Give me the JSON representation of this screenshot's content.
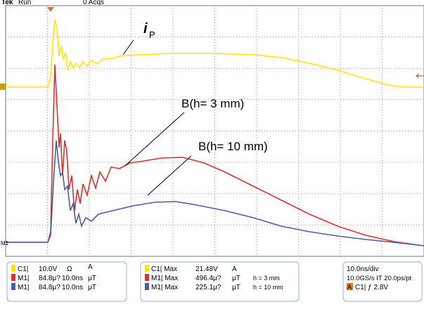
{
  "header": {
    "brand": "Tek",
    "state": "Run",
    "acqs": "0 Acqs"
  },
  "annotations": {
    "ip_main": "i",
    "ip_sub": "P",
    "b3": "B(h= 3 mm)",
    "b10": "B(h= 10 mm)",
    "ref": "M1"
  },
  "panels": {
    "channels": {
      "rows": [
        [
          "C1|",
          "10.0V",
          "Ω",
          "A"
        ],
        [
          "M1|",
          "84.8μ?",
          "10.0ns",
          "μT"
        ],
        [
          "M1|",
          "84.8μ?",
          "10.0ns",
          "μT"
        ]
      ]
    },
    "measurements": {
      "rows": [
        [
          "C1| Max",
          "21.48V",
          "A",
          ""
        ],
        [
          "M1| Max",
          "496.4μ?",
          "μT",
          "h = 3 mm"
        ],
        [
          "M1| Max",
          "225.1μ?",
          "μT",
          "h = 10 mm"
        ]
      ]
    },
    "timebase": {
      "lines": [
        "10.0ns/div",
        "10.0GS/s IT 20.0ps/pt"
      ],
      "trigger_tag": "A",
      "trigger": "C1| ƒ 2.8V"
    }
  }
}
